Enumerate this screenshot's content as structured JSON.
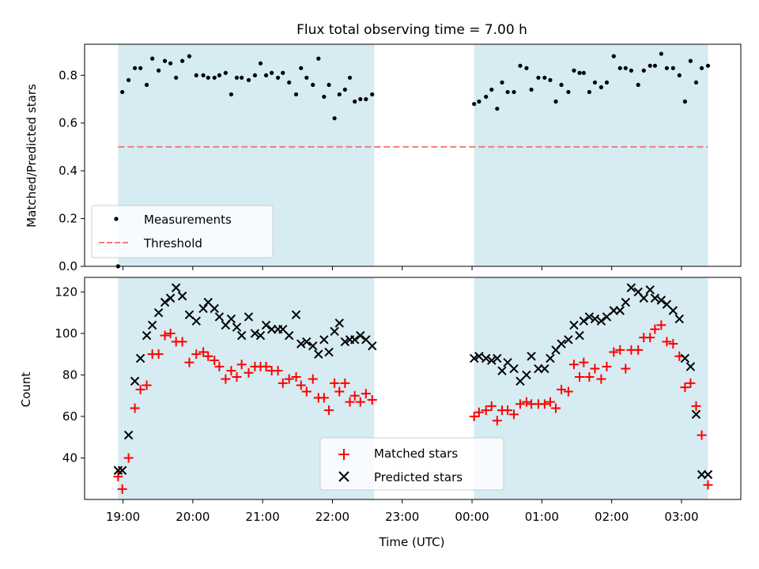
{
  "chart_data": [
    {
      "type": "scatter",
      "title": "Flux total observing time = 7.00 h",
      "ylabel": "Matched/Predicted stars",
      "xlim": [
        -0.55,
        8.85
      ],
      "ylim": [
        0.0,
        0.93
      ],
      "yticks": [
        0.0,
        0.2,
        0.4,
        0.6,
        0.8
      ],
      "ytick_labels": [
        "0.0",
        "0.2",
        "0.4",
        "0.6",
        "0.8"
      ],
      "legend_loc": "lower left",
      "shaded_intervals": [
        [
          -0.07,
          3.6
        ],
        [
          5.03,
          8.38
        ]
      ],
      "threshold": {
        "name": "Threshold",
        "value": 0.5,
        "x_range": [
          -0.07,
          8.38
        ],
        "color": "#f47b7b"
      },
      "series": [
        {
          "name": "Measurements",
          "color": "#000000",
          "x": [
            -0.07,
            -0.01,
            0.08,
            0.17,
            0.25,
            0.34,
            0.42,
            0.51,
            0.6,
            0.68,
            0.76,
            0.85,
            0.95,
            1.05,
            1.15,
            1.22,
            1.31,
            1.38,
            1.47,
            1.55,
            1.63,
            1.7,
            1.8,
            1.89,
            1.97,
            2.05,
            2.13,
            2.22,
            2.29,
            2.38,
            2.48,
            2.55,
            2.63,
            2.72,
            2.8,
            2.88,
            2.95,
            3.03,
            3.1,
            3.18,
            3.25,
            3.32,
            3.4,
            3.48,
            3.57,
            5.03,
            5.1,
            5.2,
            5.28,
            5.36,
            5.43,
            5.51,
            5.6,
            5.69,
            5.78,
            5.85,
            5.95,
            6.04,
            6.12,
            6.2,
            6.28,
            6.38,
            6.46,
            6.54,
            6.6,
            6.68,
            6.76,
            6.85,
            6.93,
            7.03,
            7.12,
            7.2,
            7.28,
            7.38,
            7.46,
            7.55,
            7.62,
            7.71,
            7.79,
            7.88,
            7.97,
            8.05,
            8.13,
            8.21,
            8.29,
            8.38
          ],
          "y": [
            0.0,
            0.73,
            0.78,
            0.83,
            0.83,
            0.76,
            0.87,
            0.82,
            0.86,
            0.85,
            0.79,
            0.86,
            0.88,
            0.8,
            0.8,
            0.79,
            0.79,
            0.8,
            0.81,
            0.72,
            0.79,
            0.79,
            0.78,
            0.8,
            0.85,
            0.8,
            0.81,
            0.79,
            0.81,
            0.77,
            0.72,
            0.83,
            0.79,
            0.76,
            0.87,
            0.71,
            0.76,
            0.62,
            0.72,
            0.74,
            0.79,
            0.69,
            0.7,
            0.7,
            0.72,
            0.68,
            0.69,
            0.71,
            0.74,
            0.66,
            0.77,
            0.73,
            0.73,
            0.84,
            0.83,
            0.74,
            0.79,
            0.79,
            0.78,
            0.69,
            0.76,
            0.73,
            0.82,
            0.81,
            0.81,
            0.73,
            0.77,
            0.75,
            0.77,
            0.88,
            0.83,
            0.83,
            0.82,
            0.76,
            0.82,
            0.84,
            0.84,
            0.89,
            0.83,
            0.83,
            0.8,
            0.69,
            0.86,
            0.77,
            0.83,
            0.84
          ]
        }
      ]
    },
    {
      "type": "scatter",
      "ylabel": "Count",
      "xlabel": "Time (UTC)",
      "xlim": [
        -0.55,
        8.85
      ],
      "ylim": [
        20,
        127
      ],
      "yticks": [
        40,
        60,
        80,
        100,
        120
      ],
      "ytick_labels": [
        "40",
        "60",
        "80",
        "100",
        "120"
      ],
      "xticks": [
        0,
        1,
        2,
        3,
        4,
        5,
        6,
        7,
        8
      ],
      "xtick_labels": [
        "19:00",
        "20:00",
        "21:00",
        "22:00",
        "23:00",
        "00:00",
        "01:00",
        "02:00",
        "03:00"
      ],
      "legend_loc": "lower center",
      "shaded_intervals": [
        [
          -0.07,
          3.6
        ],
        [
          5.03,
          8.38
        ]
      ],
      "series": [
        {
          "name": "Matched stars",
          "marker": "plus",
          "color": "#ff0000",
          "x": [
            -0.07,
            -0.01,
            0.08,
            0.17,
            0.25,
            0.34,
            0.42,
            0.51,
            0.6,
            0.68,
            0.76,
            0.85,
            0.95,
            1.05,
            1.15,
            1.22,
            1.31,
            1.38,
            1.47,
            1.55,
            1.63,
            1.7,
            1.8,
            1.89,
            1.97,
            2.05,
            2.13,
            2.22,
            2.29,
            2.38,
            2.48,
            2.55,
            2.63,
            2.72,
            2.8,
            2.88,
            2.95,
            3.03,
            3.1,
            3.18,
            3.25,
            3.32,
            3.4,
            3.48,
            3.57,
            5.03,
            5.1,
            5.2,
            5.28,
            5.36,
            5.43,
            5.51,
            5.6,
            5.69,
            5.78,
            5.85,
            5.95,
            6.04,
            6.12,
            6.2,
            6.28,
            6.38,
            6.46,
            6.54,
            6.6,
            6.68,
            6.76,
            6.85,
            6.93,
            7.03,
            7.12,
            7.2,
            7.28,
            7.38,
            7.46,
            7.55,
            7.62,
            7.71,
            7.79,
            7.88,
            7.97,
            8.05,
            8.13,
            8.21,
            8.29,
            8.38
          ],
          "y": [
            31,
            25,
            40,
            64,
            73,
            75,
            90,
            90,
            99,
            100,
            96,
            96,
            86,
            90,
            91,
            89,
            87,
            84,
            78,
            82,
            79,
            85,
            81,
            84,
            84,
            84,
            82,
            82,
            76,
            78,
            79,
            75,
            72,
            78,
            69,
            69,
            63,
            76,
            72,
            76,
            67,
            70,
            67,
            71,
            68,
            60,
            62,
            63,
            65,
            58,
            63,
            63,
            61,
            66,
            67,
            66,
            66,
            66,
            67,
            64,
            73,
            72,
            85,
            79,
            86,
            79,
            83,
            78,
            84,
            91,
            92,
            83,
            92,
            92,
            98,
            98,
            102,
            104,
            96,
            95,
            89,
            74,
            76,
            65,
            51,
            27
          ]
        },
        {
          "name": "Predicted stars",
          "marker": "x",
          "color": "#000000",
          "x": [
            -0.07,
            -0.01,
            0.08,
            0.17,
            0.25,
            0.34,
            0.42,
            0.51,
            0.6,
            0.68,
            0.76,
            0.85,
            0.95,
            1.05,
            1.15,
            1.22,
            1.31,
            1.38,
            1.47,
            1.55,
            1.63,
            1.7,
            1.8,
            1.89,
            1.97,
            2.05,
            2.13,
            2.22,
            2.29,
            2.38,
            2.48,
            2.55,
            2.63,
            2.72,
            2.8,
            2.88,
            2.95,
            3.03,
            3.1,
            3.18,
            3.25,
            3.32,
            3.4,
            3.48,
            3.57,
            5.03,
            5.1,
            5.2,
            5.28,
            5.36,
            5.43,
            5.51,
            5.6,
            5.69,
            5.78,
            5.85,
            5.95,
            6.04,
            6.12,
            6.2,
            6.28,
            6.38,
            6.46,
            6.54,
            6.6,
            6.68,
            6.76,
            6.85,
            6.93,
            7.03,
            7.12,
            7.2,
            7.28,
            7.38,
            7.46,
            7.55,
            7.62,
            7.71,
            7.79,
            7.88,
            7.97,
            8.05,
            8.13,
            8.21,
            8.29,
            8.38
          ],
          "y": [
            34,
            34,
            51,
            77,
            88,
            99,
            104,
            110,
            115,
            117,
            122,
            118,
            109,
            106,
            112,
            115,
            112,
            108,
            104,
            107,
            103,
            99,
            108,
            100,
            99,
            104,
            102,
            102,
            102,
            99,
            109,
            95,
            96,
            94,
            90,
            97,
            91,
            101,
            105,
            96,
            97,
            97,
            99,
            97,
            94,
            88,
            89,
            88,
            87,
            88,
            82,
            86,
            83,
            77,
            80,
            89,
            83,
            83,
            88,
            92,
            95,
            97,
            104,
            99,
            106,
            108,
            107,
            106,
            108,
            111,
            111,
            115,
            122,
            120,
            117,
            121,
            117,
            116,
            114,
            111,
            107,
            88,
            84,
            61,
            32,
            32
          ]
        }
      ]
    }
  ]
}
